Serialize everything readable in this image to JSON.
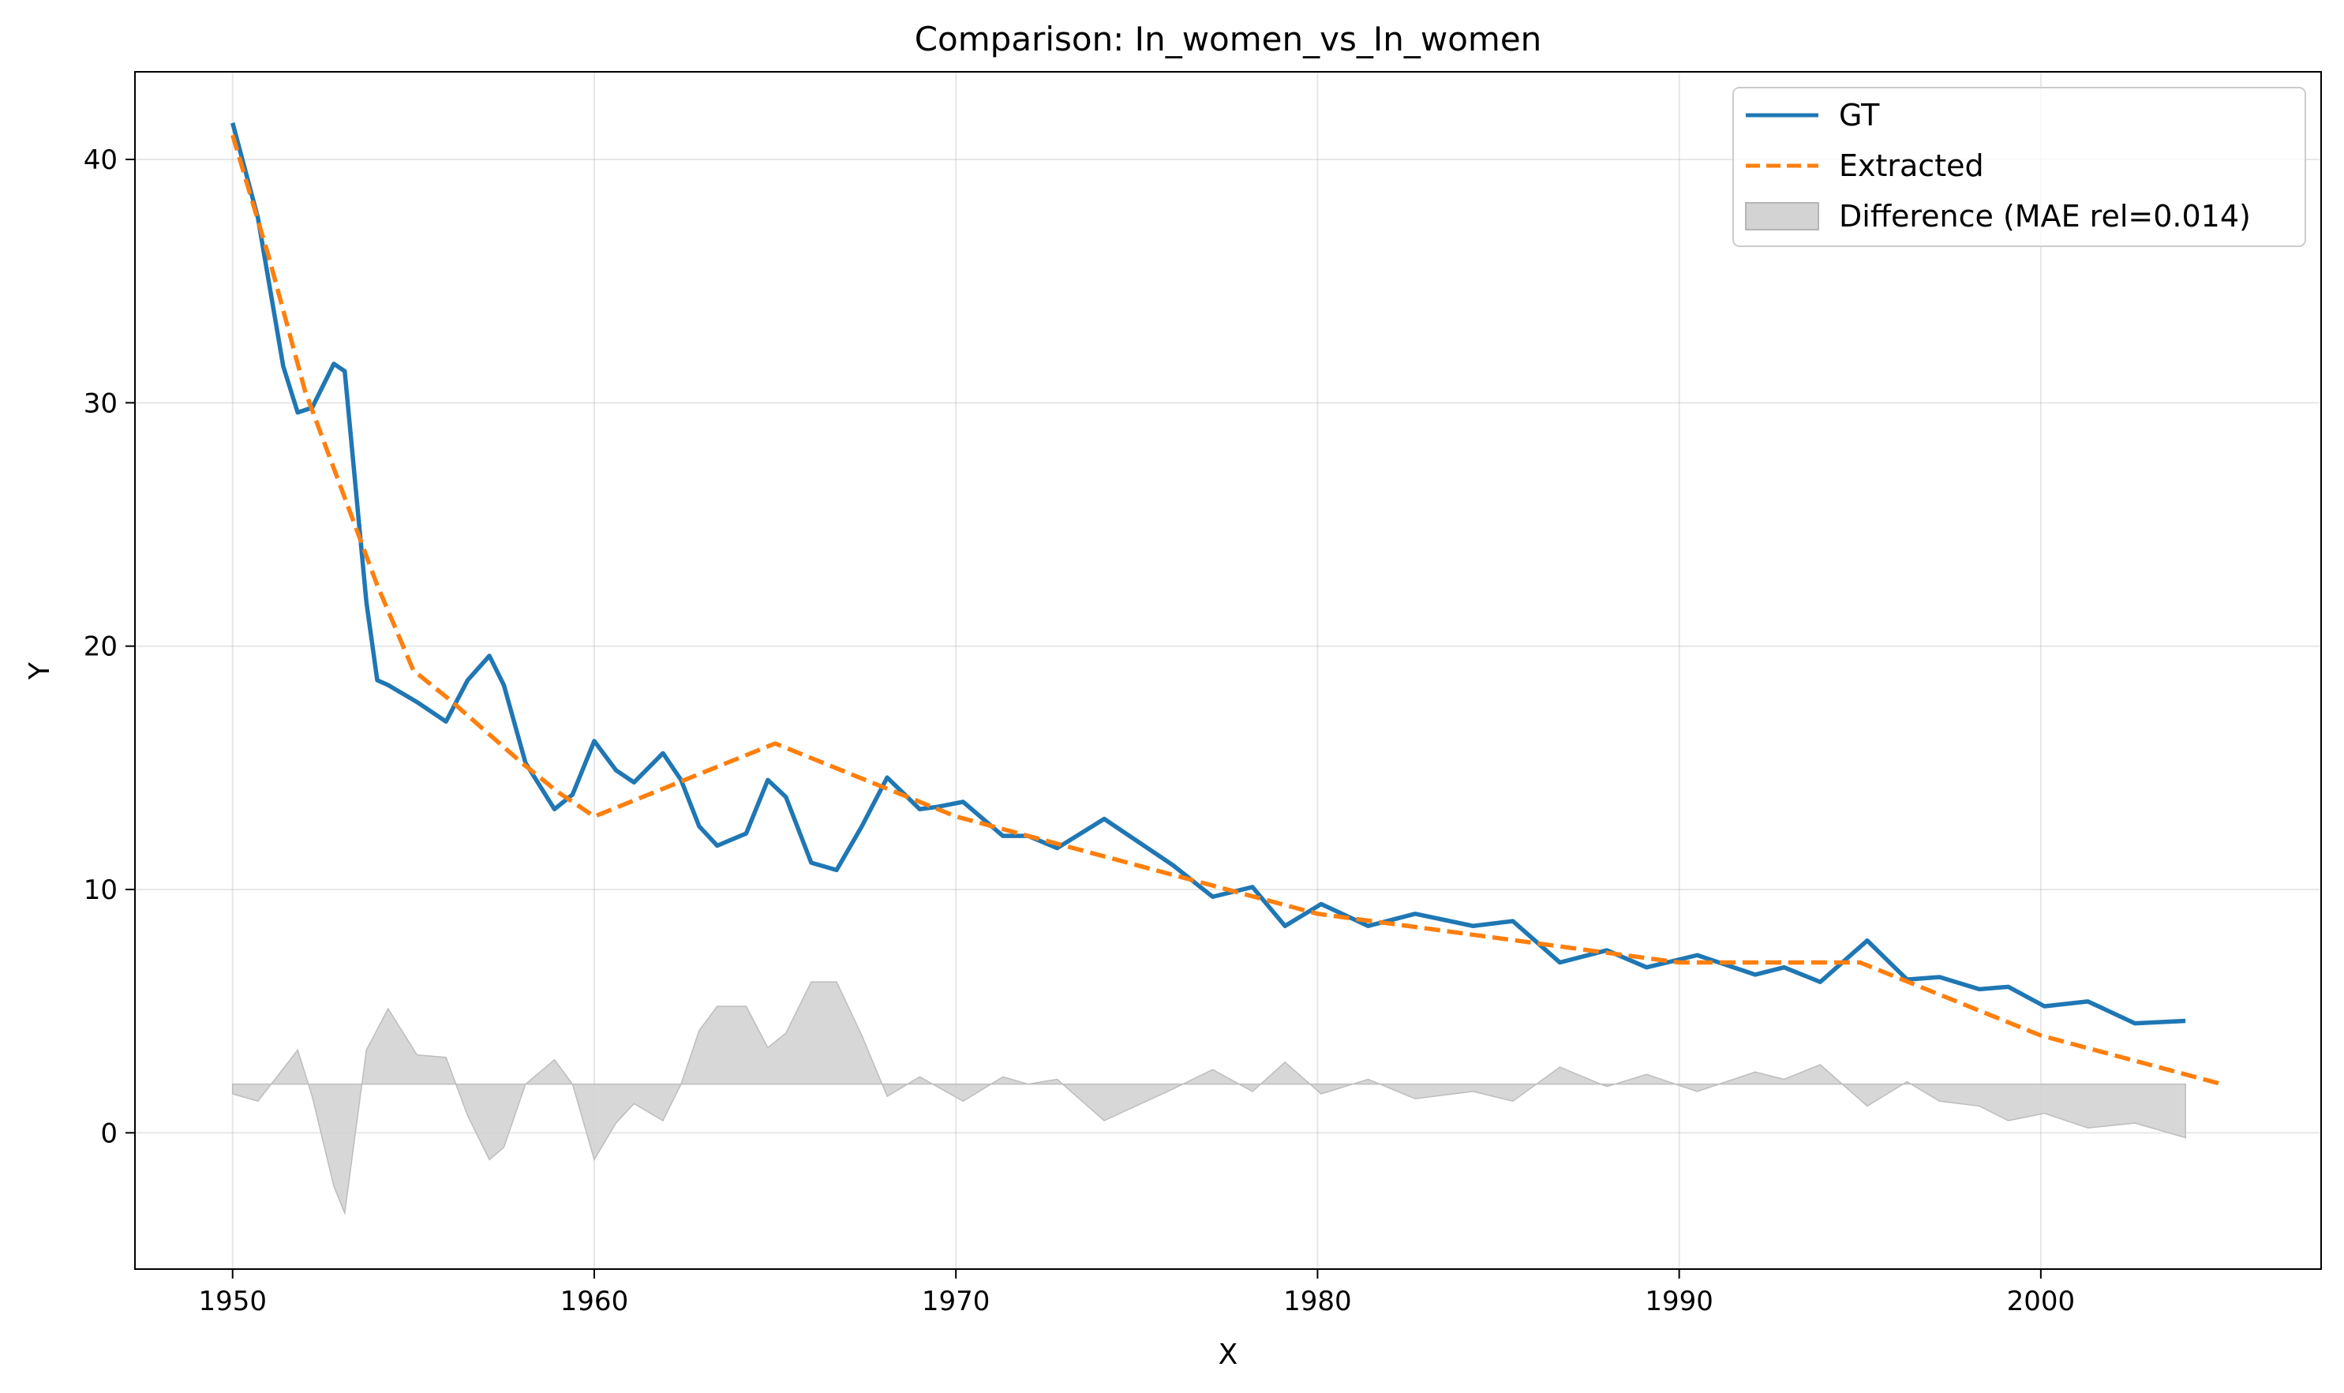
{
  "chart_data": {
    "type": "line",
    "title": "Comparison: In_women_vs_In_women",
    "xlabel": "X",
    "ylabel": "Y",
    "xlim": [
      1947.3,
      2007.75
    ],
    "ylim": [
      -5.6,
      43.6
    ],
    "xticks": [
      1950,
      1960,
      1970,
      1980,
      1990,
      2000
    ],
    "yticks": [
      0,
      10,
      20,
      30,
      40
    ],
    "grid": true,
    "legend_position": "top-right",
    "series": [
      {
        "name": "GT",
        "color": "#1f77b4",
        "style": "solid",
        "x": [
          1950,
          1950.7,
          1951.4,
          1951.8,
          1952.2,
          1952.8,
          1953.1,
          1953.7,
          1954,
          1954.3,
          1955.1,
          1955.9,
          1956.5,
          1957.1,
          1957.5,
          1958.1,
          1958.9,
          1959.4,
          1960,
          1960.6,
          1961.1,
          1961.9,
          1962.4,
          1962.9,
          1963.4,
          1964.2,
          1964.8,
          1965.3,
          1966,
          1966.7,
          1967.4,
          1968.1,
          1969,
          1969.5,
          1970.2,
          1971.3,
          1972,
          1972.8,
          1974.1,
          1976,
          1977.1,
          1978.2,
          1979.1,
          1980.1,
          1981.4,
          1982.7,
          1984.3,
          1985.4,
          1986.7,
          1988,
          1989.1,
          1990.5,
          1992.1,
          1992.9,
          1993.9,
          1995.2,
          1996.3,
          1997.2,
          1998.3,
          1999.1,
          2000.1,
          2001.3,
          2002.6,
          2004
        ],
        "y": [
          41.5,
          37.6,
          31.5,
          29.6,
          29.8,
          31.6,
          31.3,
          21.8,
          18.6,
          18.4,
          17.7,
          16.9,
          18.6,
          19.6,
          18.4,
          15.2,
          13.3,
          13.9,
          16.1,
          14.9,
          14.4,
          15.6,
          14.5,
          12.6,
          11.8,
          12.3,
          14.5,
          13.8,
          11.1,
          10.8,
          12.6,
          14.6,
          13.3,
          13.4,
          13.6,
          12.2,
          12.2,
          11.7,
          12.9,
          11.0,
          9.7,
          10.1,
          8.5,
          9.4,
          8.5,
          9.0,
          8.5,
          8.7,
          7.0,
          7.5,
          6.8,
          7.3,
          6.5,
          6.8,
          6.2,
          7.9,
          6.3,
          6.4,
          5.9,
          6.0,
          5.2,
          5.4,
          4.5,
          4.6
        ]
      },
      {
        "name": "Extracted",
        "color": "#ff7f0e",
        "style": "dashed",
        "x": [
          1950,
          1951,
          1952,
          1953,
          1954,
          1955,
          1956,
          1957,
          1958,
          1959,
          1960,
          1961,
          1962,
          1963,
          1964,
          1965,
          1966,
          1967,
          1968,
          1969,
          1970,
          1971,
          1972,
          1973,
          1974,
          1975,
          1976,
          1977,
          1978,
          1979,
          1980,
          1981,
          1982,
          1983,
          1984,
          1985,
          1986,
          1987,
          1988,
          1989,
          1990,
          1991,
          1992,
          1993,
          1994,
          1995,
          1996,
          1997,
          1998,
          1999,
          2000,
          2001,
          2002,
          2003,
          2004,
          2005
        ],
        "y": [
          41.0,
          36.0,
          30.5,
          26.5,
          22.5,
          19.0,
          17.8,
          16.5,
          15.2,
          14.0,
          13.0,
          13.6,
          14.2,
          14.8,
          15.4,
          16.0,
          15.4,
          14.8,
          14.2,
          13.6,
          13.0,
          12.6,
          12.2,
          11.8,
          11.4,
          11.0,
          10.6,
          10.2,
          9.8,
          9.4,
          9.0,
          8.8,
          8.6,
          8.4,
          8.2,
          8.0,
          7.8,
          7.6,
          7.4,
          7.2,
          7.0,
          7.0,
          7.0,
          7.0,
          7.0,
          7.0,
          6.4,
          5.8,
          5.2,
          4.6,
          4.0,
          3.6,
          3.2,
          2.8,
          2.4,
          2.0
        ]
      },
      {
        "name": "Difference (MAE rel=0.014)",
        "type": "area",
        "color": "#d3d3d3",
        "baseline": 2,
        "x": [
          1950,
          1950.7,
          1951.8,
          1952.2,
          1952.8,
          1953.1,
          1953.7,
          1954.3,
          1955.1,
          1955.9,
          1956.5,
          1957.1,
          1957.5,
          1958.1,
          1958.9,
          1959.4,
          1960,
          1960.6,
          1961.1,
          1961.9,
          1962.4,
          1962.9,
          1963.4,
          1964.2,
          1964.8,
          1965.3,
          1966,
          1966.7,
          1967.4,
          1968.1,
          1969,
          1970.2,
          1971.3,
          1972,
          1972.8,
          1974.1,
          1976,
          1977.1,
          1978.2,
          1979.1,
          1980.1,
          1981.4,
          1982.7,
          1984.3,
          1985.4,
          1986.7,
          1988,
          1989.1,
          1990.5,
          1992.1,
          1992.9,
          1993.9,
          1995.2,
          1996.3,
          1997.2,
          1998.3,
          1999.1,
          2000.1,
          2001.3,
          2002.6,
          2004
        ],
        "y": [
          1.6,
          1.3,
          3.4,
          1.5,
          -2.2,
          -3.3,
          3.4,
          5.1,
          3.2,
          3.1,
          0.7,
          -1.1,
          -0.6,
          2.0,
          3.0,
          2.0,
          -1.1,
          0.4,
          1.2,
          0.5,
          2.0,
          4.2,
          5.2,
          5.2,
          3.5,
          4.1,
          6.2,
          6.2,
          4.0,
          1.5,
          2.3,
          1.3,
          2.3,
          2.0,
          2.2,
          0.5,
          1.8,
          2.6,
          1.7,
          2.9,
          1.6,
          2.2,
          1.4,
          1.7,
          1.3,
          2.7,
          1.9,
          2.4,
          1.7,
          2.5,
          2.2,
          2.8,
          1.1,
          2.1,
          1.3,
          1.1,
          0.5,
          0.8,
          0.2,
          0.4,
          -0.2
        ]
      }
    ]
  }
}
